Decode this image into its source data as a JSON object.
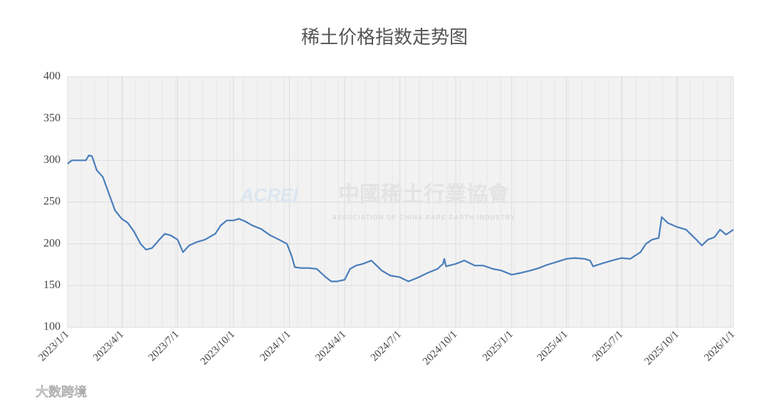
{
  "chart_data": {
    "type": "line",
    "title": "稀土价格指数走势图",
    "watermark": {
      "logo": "ACREI",
      "name": "中國稀土行業協會",
      "subtitle": "ASSOCIATION OF CHINA RARE EARTH INDUSTRY"
    },
    "source_mark": "大数跨境",
    "x": [
      "2023/1/1",
      "2023/1/8",
      "2023/1/31",
      "2023/2/5",
      "2023/2/10",
      "2023/2/18",
      "2023/2/28",
      "2023/3/10",
      "2023/3/20",
      "2023/3/31",
      "2023/4/10",
      "2023/4/20",
      "2023/5/1",
      "2023/5/10",
      "2023/5/20",
      "2023/6/1",
      "2023/6/10",
      "2023/6/20",
      "2023/7/1",
      "2023/7/10",
      "2023/7/20",
      "2023/8/1",
      "2023/8/15",
      "2023/9/1",
      "2023/9/10",
      "2023/9/20",
      "2023/10/1",
      "2023/10/10",
      "2023/10/20",
      "2023/11/1",
      "2023/11/15",
      "2023/12/1",
      "2023/12/15",
      "2023/12/28",
      "2024/1/5",
      "2024/1/10",
      "2024/1/20",
      "2024/2/1",
      "2024/2/15",
      "2024/3/1",
      "2024/3/10",
      "2024/3/20",
      "2024/4/1",
      "2024/4/10",
      "2024/4/20",
      "2024/5/1",
      "2024/5/15",
      "2024/6/1",
      "2024/6/15",
      "2024/7/1",
      "2024/7/15",
      "2024/8/1",
      "2024/8/15",
      "2024/9/1",
      "2024/9/10",
      "2024/9/12",
      "2024/9/15",
      "2024/10/1",
      "2024/10/15",
      "2024/11/1",
      "2024/11/15",
      "2024/12/1",
      "2024/12/15",
      "2025/1/1",
      "2025/1/15",
      "2025/2/1",
      "2025/2/15",
      "2025/3/1",
      "2025/3/15",
      "2025/4/1",
      "2025/4/15",
      "2025/5/1",
      "2025/5/10",
      "2025/5/15",
      "2025/6/1",
      "2025/6/15",
      "2025/7/1",
      "2025/7/15",
      "2025/8/1",
      "2025/8/10",
      "2025/8/20",
      "2025/8/31",
      "2025/9/5",
      "2025/9/15",
      "2025/10/1",
      "2025/10/15",
      "2025/11/1",
      "2025/11/10",
      "2025/11/20",
      "2025/12/1",
      "2025/12/10",
      "2025/12/20",
      "2026/1/1"
    ],
    "series": [
      {
        "name": "稀土价格指数",
        "color": "#4a7ebb",
        "values": [
          296,
          300,
          300,
          306,
          305,
          288,
          280,
          260,
          240,
          230,
          225,
          215,
          200,
          193,
          195,
          205,
          212,
          210,
          205,
          190,
          198,
          202,
          205,
          212,
          222,
          228,
          228,
          230,
          227,
          222,
          218,
          210,
          205,
          200,
          185,
          172,
          171,
          171,
          170,
          160,
          155,
          155,
          157,
          170,
          174,
          176,
          180,
          168,
          162,
          160,
          155,
          160,
          165,
          170,
          176,
          182,
          173,
          176,
          180,
          174,
          174,
          170,
          168,
          163,
          165,
          168,
          171,
          175,
          178,
          182,
          183,
          182,
          180,
          173,
          177,
          180,
          183,
          182,
          190,
          200,
          205,
          207,
          232,
          225,
          220,
          217,
          205,
          198,
          205,
          208,
          217,
          211,
          217
        ]
      }
    ],
    "xlim": [
      "2023/1/1",
      "2026/1/1"
    ],
    "xticks": [
      "2023/1/1",
      "2023/4/1",
      "2023/7/1",
      "2023/10/1",
      "2024/1/1",
      "2024/4/1",
      "2024/7/1",
      "2024/10/1",
      "2025/1/1",
      "2025/4/1",
      "2025/7/1",
      "2025/10/1",
      "2026/1/1"
    ],
    "ylim": [
      100,
      400
    ],
    "yticks": [
      100,
      150,
      200,
      250,
      300,
      350,
      400
    ],
    "grid": true
  }
}
